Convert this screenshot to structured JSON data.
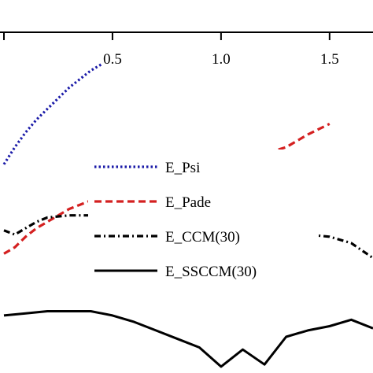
{
  "chart_data": {
    "type": "line",
    "title": "",
    "xlabel": "",
    "ylabel": "",
    "x_axis_position": "top",
    "xlim": [
      0,
      1.7
    ],
    "x_ticks": [
      {
        "value": 0.5,
        "label": "0.5"
      },
      {
        "value": 1.0,
        "label": "1.0"
      },
      {
        "value": 1.5,
        "label": "1.5"
      }
    ],
    "ylim": [
      -1.5,
      0.1
    ],
    "grid": false,
    "legend": {
      "placement": "center"
    },
    "series": [
      {
        "name": "E_Psi",
        "color": "#1a1aa8",
        "dash": "dotted",
        "x": [
          0.0,
          0.05,
          0.1,
          0.15,
          0.2,
          0.25,
          0.3,
          0.35,
          0.4,
          0.45
        ],
        "y": [
          -0.52,
          -0.44,
          -0.37,
          -0.31,
          -0.26,
          -0.21,
          -0.16,
          -0.12,
          -0.08,
          -0.05
        ]
      },
      {
        "name": "E_Pade",
        "color": "#d42020",
        "dash": "dashed",
        "x": [
          0.0,
          0.05,
          0.1,
          0.15,
          0.2,
          0.25,
          0.3,
          0.35,
          0.4,
          0.5,
          0.6,
          0.7,
          0.8,
          0.9,
          1.0,
          1.1,
          1.2,
          1.3,
          1.4,
          1.5
        ],
        "y": [
          -0.94,
          -0.91,
          -0.86,
          -0.82,
          -0.79,
          -0.76,
          -0.73,
          -0.71,
          -0.69,
          -0.66,
          -0.64,
          -0.61,
          -0.58,
          -0.54,
          -0.51,
          -0.49,
          -0.47,
          -0.44,
          -0.38,
          -0.33
        ]
      },
      {
        "name": "E_CCM(30)",
        "color": "#000000",
        "dash": "dashdot",
        "x": [
          0.0,
          0.05,
          0.1,
          0.15,
          0.2,
          0.3,
          0.4,
          0.5,
          0.6,
          0.7,
          0.8,
          0.9,
          1.0,
          1.1,
          1.2,
          1.3,
          1.4,
          1.5,
          1.6,
          1.7
        ],
        "y": [
          -0.83,
          -0.85,
          -0.82,
          -0.79,
          -0.77,
          -0.76,
          -0.76,
          -0.77,
          -0.78,
          -0.79,
          -0.8,
          -0.81,
          -0.81,
          -0.82,
          -0.83,
          -0.84,
          -0.85,
          -0.86,
          -0.89,
          -0.96
        ]
      },
      {
        "name": "E_SSCCM(30)",
        "color": "#000000",
        "dash": "solid",
        "x": [
          0.0,
          0.1,
          0.2,
          0.3,
          0.4,
          0.5,
          0.6,
          0.7,
          0.8,
          0.9,
          1.0,
          1.1,
          1.2,
          1.3,
          1.4,
          1.5,
          1.6,
          1.7
        ],
        "y": [
          -1.23,
          -1.22,
          -1.21,
          -1.21,
          -1.21,
          -1.23,
          -1.26,
          -1.3,
          -1.34,
          -1.38,
          -1.47,
          -1.39,
          -1.46,
          -1.33,
          -1.3,
          -1.28,
          -1.25,
          -1.29
        ]
      }
    ]
  }
}
